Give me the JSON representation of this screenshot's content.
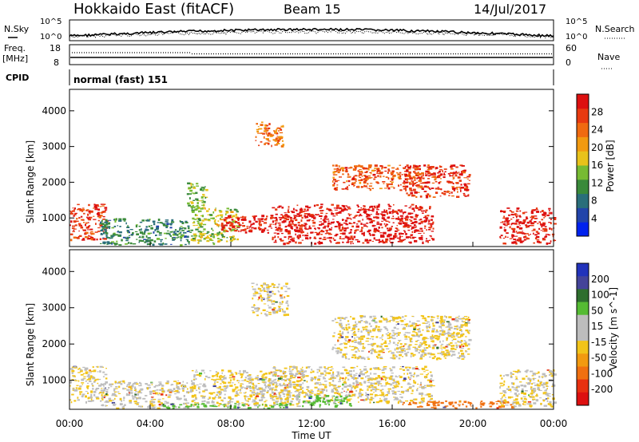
{
  "header": {
    "title": "Hokkaido East (fitACF)",
    "beam": "Beam 15",
    "date": "14/Jul/2017"
  },
  "top_panels": {
    "nsky_label": "N.Sky",
    "nsky_ticks": [
      "10^5",
      "10^0"
    ],
    "nsearch_label": "N.Search",
    "freq_label_line1": "Freq.",
    "freq_label_line2": "[MHz]",
    "freq_ticks": [
      "18",
      "8"
    ],
    "nave_ticks": [
      "60",
      "0"
    ],
    "nave_label": "Nave",
    "cpid_label": "CPID",
    "cpid_text": "normal (fast) 151"
  },
  "colors": {
    "power_scale": [
      "#0022ee",
      "#2244aa",
      "#2a6e7a",
      "#3a8a3a",
      "#77bb33",
      "#e8c21a",
      "#f29a10",
      "#f06a10",
      "#e83a10",
      "#dd1010"
    ],
    "velocity_scale": [
      "#2233bb",
      "#444499",
      "#2e6e2e",
      "#55bb33",
      "#bdbdbd",
      "#bdbdbd",
      "#f2c41a",
      "#f29a10",
      "#f07010",
      "#e83010",
      "#dd1010"
    ]
  },
  "chart_data": [
    {
      "type": "heatmap",
      "panel": "power",
      "ylabel": "Slant Range [km]",
      "xlabel": "",
      "xlim_hours": [
        0,
        24
      ],
      "ylim_km": [
        200,
        4600
      ],
      "yticks": [
        "1000",
        "2000",
        "3000",
        "4000"
      ],
      "colorbar_label": "Power [dB]",
      "colorbar_ticks": [
        "4",
        "8",
        "12",
        "16",
        "20",
        "24",
        "28"
      ],
      "regions": [
        {
          "t0": 0.0,
          "t1": 1.8,
          "r0": 400,
          "r1": 1400,
          "level": 27
        },
        {
          "t0": 1.5,
          "t1": 6.0,
          "r0": 250,
          "r1": 1000,
          "level": 8
        },
        {
          "t0": 5.8,
          "t1": 6.8,
          "r0": 1300,
          "r1": 2000,
          "level": 13
        },
        {
          "t0": 6.0,
          "t1": 8.3,
          "r0": 300,
          "r1": 1300,
          "level": 14
        },
        {
          "t0": 7.5,
          "t1": 11.5,
          "r0": 600,
          "r1": 1100,
          "level": 28
        },
        {
          "t0": 10.0,
          "t1": 18.0,
          "r0": 300,
          "r1": 1400,
          "level": 29
        },
        {
          "t0": 13.0,
          "t1": 17.5,
          "r0": 1800,
          "r1": 2500,
          "level": 24
        },
        {
          "t0": 16.5,
          "t1": 19.8,
          "r0": 1600,
          "r1": 2500,
          "level": 26
        },
        {
          "t0": 21.3,
          "t1": 24.0,
          "r0": 300,
          "r1": 1300,
          "level": 28
        },
        {
          "t0": 9.2,
          "t1": 10.6,
          "r0": 3000,
          "r1": 3700,
          "level": 22
        }
      ]
    },
    {
      "type": "heatmap",
      "panel": "velocity",
      "ylabel": "Slant Range [km]",
      "xlabel": "Time UT",
      "xlim_hours": [
        0,
        24
      ],
      "ylim_km": [
        200,
        4600
      ],
      "xticks": [
        "00:00",
        "04:00",
        "08:00",
        "12:00",
        "16:00",
        "20:00",
        "00:00"
      ],
      "yticks": [
        "1000",
        "2000",
        "3000",
        "4000"
      ],
      "colorbar_label": "Velocity [m s^-1]",
      "colorbar_ticks": [
        "200",
        "100",
        "50",
        "15",
        "-15",
        "-50",
        "-100",
        "-200"
      ],
      "regions": [
        {
          "t0": 0.0,
          "t1": 1.8,
          "r0": 400,
          "r1": 1400,
          "velocity": 0
        },
        {
          "t0": 1.5,
          "t1": 6.0,
          "r0": 250,
          "r1": 1000,
          "velocity": 5
        },
        {
          "t0": 6.0,
          "t1": 11.5,
          "r0": 300,
          "r1": 1300,
          "velocity": 0
        },
        {
          "t0": 10.0,
          "t1": 18.0,
          "r0": 400,
          "r1": 1400,
          "velocity": 0
        },
        {
          "t0": 13.0,
          "t1": 19.8,
          "r0": 1600,
          "r1": 2800,
          "velocity": 0
        },
        {
          "t0": 9.0,
          "t1": 10.8,
          "r0": 2800,
          "r1": 3700,
          "velocity": 0
        },
        {
          "t0": 4.5,
          "t1": 11.0,
          "r0": 250,
          "r1": 380,
          "velocity": 40
        },
        {
          "t0": 11.5,
          "t1": 14.0,
          "r0": 300,
          "r1": 600,
          "velocity": 40
        },
        {
          "t0": 16.5,
          "t1": 22.0,
          "r0": 250,
          "r1": 450,
          "velocity": -60
        },
        {
          "t0": 21.3,
          "t1": 24.0,
          "r0": 300,
          "r1": 1300,
          "velocity": 0
        }
      ]
    }
  ]
}
